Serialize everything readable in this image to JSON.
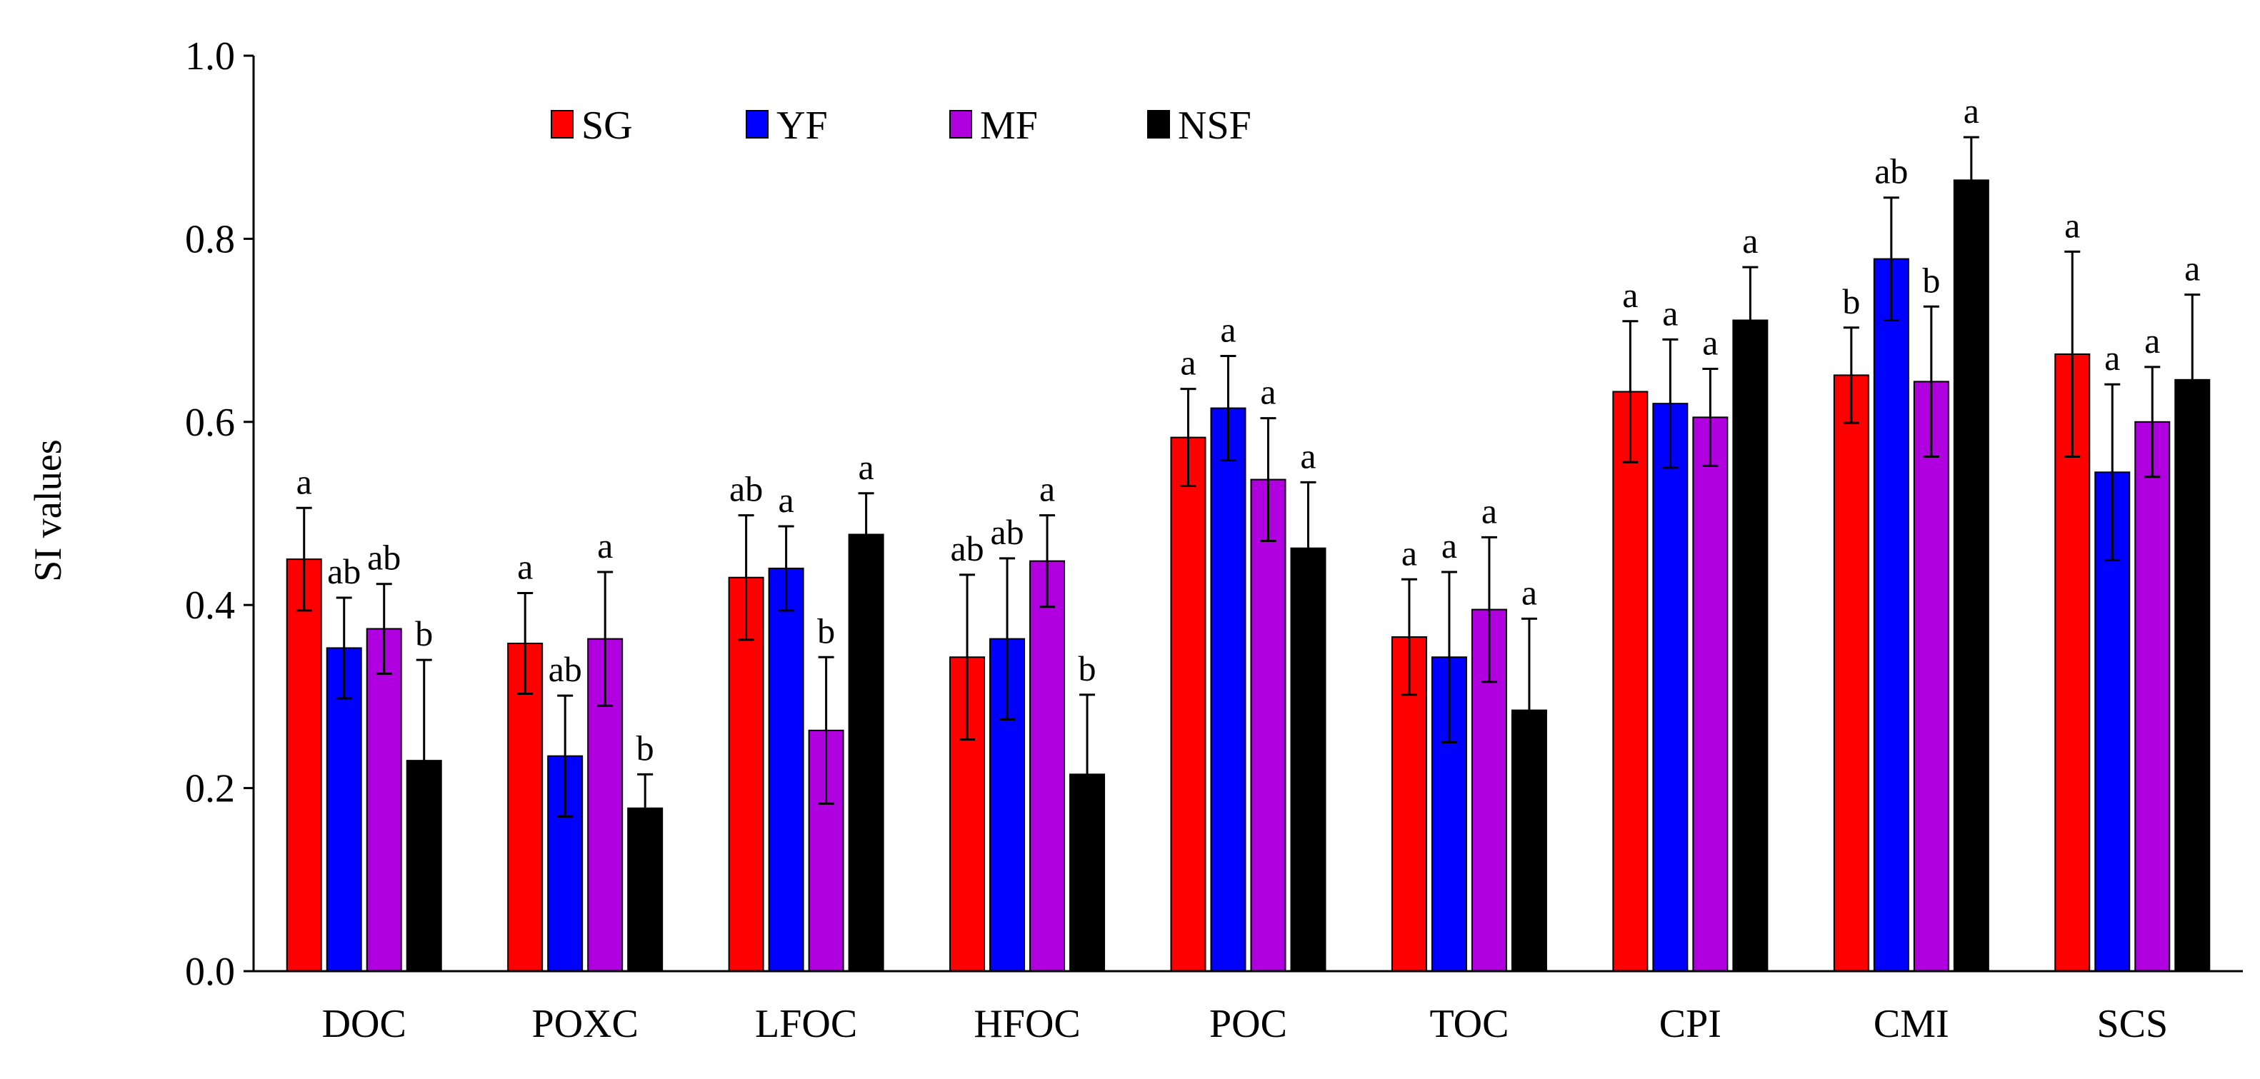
{
  "chart_data": {
    "type": "bar",
    "title": "",
    "xlabel": "",
    "ylabel": "SI values",
    "ylim": [
      0,
      1.0
    ],
    "yticks": [
      "0.0",
      "0.2",
      "0.4",
      "0.6",
      "0.8",
      "1.0"
    ],
    "grid": false,
    "legend_position": "top-left",
    "categories": [
      "DOC",
      "POXC",
      "LFOC",
      "HFOC",
      "POC",
      "TOC",
      "CPI",
      "CMI",
      "SCS"
    ],
    "series": [
      {
        "name": "SG",
        "color": "#ff0000",
        "values": [
          0.45,
          0.358,
          0.43,
          0.343,
          0.583,
          0.365,
          0.633,
          0.651,
          0.674
        ],
        "errors": [
          0.056,
          0.055,
          0.068,
          0.09,
          0.053,
          0.063,
          0.077,
          0.052,
          0.112
        ],
        "letters": [
          "a",
          "a",
          "ab",
          "ab",
          "a",
          "a",
          "a",
          "b",
          "a"
        ]
      },
      {
        "name": "YF",
        "color": "#0000ff",
        "values": [
          0.353,
          0.235,
          0.44,
          0.363,
          0.615,
          0.343,
          0.62,
          0.778,
          0.545
        ],
        "errors": [
          0.055,
          0.066,
          0.046,
          0.088,
          0.057,
          0.093,
          0.07,
          0.067,
          0.096
        ],
        "letters": [
          "ab",
          "ab",
          "a",
          "ab",
          "a",
          "a",
          "a",
          "ab",
          "a"
        ]
      },
      {
        "name": "MF",
        "color": "#b000e0",
        "values": [
          0.374,
          0.363,
          0.263,
          0.448,
          0.537,
          0.395,
          0.605,
          0.644,
          0.6
        ],
        "errors": [
          0.049,
          0.073,
          0.08,
          0.05,
          0.067,
          0.079,
          0.053,
          0.082,
          0.06
        ],
        "letters": [
          "ab",
          "a",
          "b",
          "a",
          "a",
          "a",
          "a",
          "b",
          "a"
        ]
      },
      {
        "name": "NSF",
        "color": "#000000",
        "values": [
          0.23,
          0.178,
          0.477,
          0.215,
          0.462,
          0.285,
          0.711,
          0.864,
          0.646
        ],
        "errors": [
          0.11,
          0.037,
          0.045,
          0.087,
          0.072,
          0.1,
          0.058,
          0.047,
          0.093
        ],
        "letters": [
          "b",
          "b",
          "a",
          "b",
          "a",
          "a",
          "a",
          "a",
          "a"
        ]
      }
    ]
  }
}
